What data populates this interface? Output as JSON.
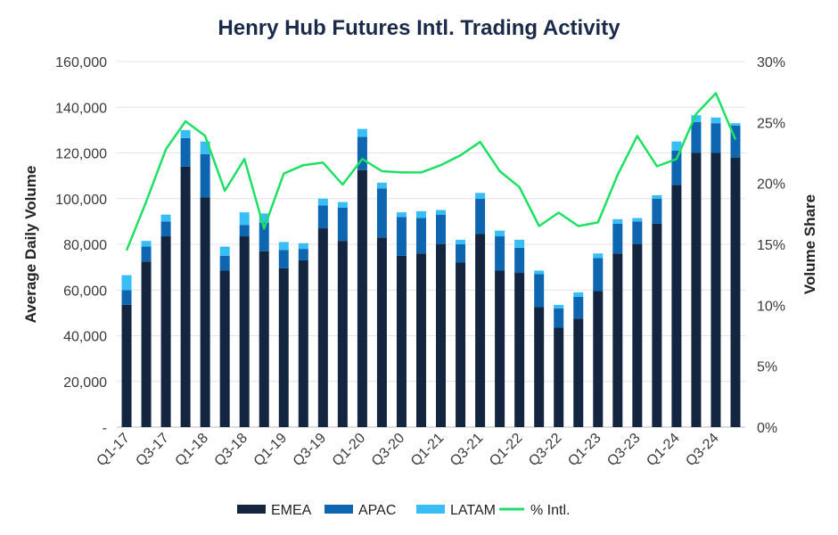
{
  "chart_data": {
    "type": "bar",
    "stacked": true,
    "title": "Henry Hub Futures Intl. Trading Activity",
    "ylabel": "Average Daily Volume",
    "y2label": "Volume Share",
    "ylim": [
      0,
      160000
    ],
    "y2lim": [
      0,
      30
    ],
    "yticks": [
      "-",
      "20,000",
      "40,000",
      "60,000",
      "80,000",
      "100,000",
      "120,000",
      "140,000",
      "160,000"
    ],
    "y2ticks": [
      "0%",
      "5%",
      "10%",
      "15%",
      "20%",
      "25%",
      "30%"
    ],
    "grid": true,
    "legend_position": "bottom",
    "categories": [
      "Q1-17",
      "Q2-17",
      "Q3-17",
      "Q4-17",
      "Q1-18",
      "Q2-18",
      "Q3-18",
      "Q4-18",
      "Q1-19",
      "Q2-19",
      "Q3-19",
      "Q4-19",
      "Q1-20",
      "Q2-20",
      "Q3-20",
      "Q4-20",
      "Q1-21",
      "Q2-21",
      "Q3-21",
      "Q4-21",
      "Q1-22",
      "Q2-22",
      "Q3-22",
      "Q4-22",
      "Q1-23",
      "Q2-23",
      "Q3-23",
      "Q4-23",
      "Q1-24",
      "Q2-24",
      "Q3-24",
      "Q4-24"
    ],
    "x_tick_labels": [
      "Q1-17",
      "Q3-17",
      "Q1-18",
      "Q3-18",
      "Q1-19",
      "Q3-19",
      "Q1-20",
      "Q3-20",
      "Q1-21",
      "Q3-21",
      "Q1-22",
      "Q3-22",
      "Q1-23",
      "Q3-23",
      "Q1-24",
      "Q3-24"
    ],
    "series": [
      {
        "name": "EMEA",
        "color": "#14253f",
        "axis": "left",
        "values": [
          53500,
          72500,
          83500,
          114000,
          100500,
          68500,
          83500,
          77000,
          69500,
          73000,
          87000,
          81500,
          112500,
          83000,
          75000,
          76000,
          80000,
          72000,
          84500,
          68500,
          67500,
          52500,
          43500,
          47500,
          59500,
          76000,
          80000,
          89000,
          106000,
          120000,
          120000,
          118000
        ]
      },
      {
        "name": "APAC",
        "color": "#0f66b0",
        "axis": "left",
        "values": [
          6500,
          6500,
          6500,
          12500,
          19000,
          6500,
          5000,
          12500,
          8000,
          5000,
          10000,
          14500,
          14500,
          21500,
          17000,
          15500,
          13000,
          8000,
          15500,
          15000,
          11000,
          14500,
          8500,
          9500,
          14500,
          13000,
          10000,
          11000,
          15000,
          13500,
          13000,
          14000
        ]
      },
      {
        "name": "LATAM",
        "color": "#38bdf5",
        "axis": "left",
        "values": [
          6500,
          2500,
          3000,
          3500,
          5500,
          4000,
          5500,
          4000,
          3500,
          2500,
          3000,
          2500,
          3500,
          2500,
          2000,
          3000,
          2000,
          2000,
          2500,
          2500,
          3500,
          1500,
          1500,
          2000,
          2000,
          2000,
          1500,
          1500,
          4000,
          3000,
          2500,
          1000
        ]
      },
      {
        "name": "% Intl.",
        "color": "#1ee065",
        "axis": "right",
        "type": "line",
        "values": [
          14.5,
          18.5,
          22.8,
          25.1,
          23.9,
          19.4,
          22.0,
          16.3,
          20.8,
          21.5,
          21.7,
          19.9,
          22.0,
          21.0,
          20.9,
          20.9,
          21.5,
          22.3,
          23.4,
          21.0,
          19.7,
          16.5,
          17.6,
          16.5,
          16.8,
          20.7,
          23.9,
          21.4,
          22.0,
          25.7,
          27.4,
          23.6
        ]
      }
    ]
  }
}
